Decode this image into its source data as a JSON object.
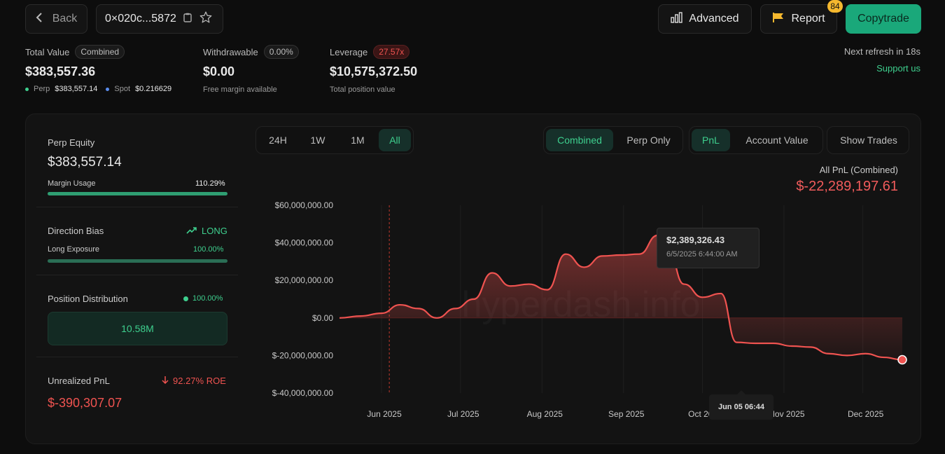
{
  "header": {
    "back_label": "Back",
    "address": "0×020c...5872",
    "advanced_label": "Advanced",
    "report_label": "Report",
    "report_badge": "84",
    "copytrade_label": "Copytrade"
  },
  "summary": {
    "total_value_label": "Total Value",
    "total_value_pill": "Combined",
    "total_value": "$383,557.36",
    "perp_label": "Perp",
    "perp_value": "$383,557.14",
    "spot_label": "Spot",
    "spot_value": "$0.216629",
    "withdrawable_label": "Withdrawable",
    "withdrawable_pill": "0.00%",
    "withdrawable_value": "$0.00",
    "withdrawable_sub": "Free margin available",
    "leverage_label": "Leverage",
    "leverage_pill": "27.57x",
    "leverage_value": "$10,575,372.50",
    "leverage_sub": "Total position value",
    "refresh_text": "Next refresh in 18s",
    "support_text": "Support us"
  },
  "left_panel": {
    "perp_equity_label": "Perp Equity",
    "perp_equity_value": "$383,557.14",
    "margin_usage_label": "Margin Usage",
    "margin_usage_value": "110.29%",
    "margin_usage_fraction": 1.0,
    "direction_bias_label": "Direction Bias",
    "direction_bias_value": "LONG",
    "long_exposure_label": "Long Exposure",
    "long_exposure_value": "100.00%",
    "long_exposure_fraction": 1.0,
    "position_dist_label": "Position Distribution",
    "position_dist_value": "100.00%",
    "position_dist_amount": "10.58M",
    "unrealized_label": "Unrealized PnL",
    "unrealized_roe": "92.27% ROE",
    "unrealized_value": "$-390,307.07"
  },
  "controls": {
    "time_ranges": [
      "24H",
      "1W",
      "1M",
      "All"
    ],
    "time_active": "All",
    "modes": [
      "Combined",
      "Perp Only"
    ],
    "mode_active": "Combined",
    "metrics": [
      "PnL",
      "Account Value"
    ],
    "metric_active": "PnL",
    "show_trades_label": "Show Trades"
  },
  "chart_data": {
    "type": "area",
    "title": "All PnL (Combined)",
    "total_value": "$-22,289,197.61",
    "watermark": "hyperdash.info",
    "y_ticks": [
      "$60,000,000.00",
      "$40,000,000.00",
      "$20,000,000.00",
      "$0.00",
      "$-20,000,000.00",
      "$-40,000,000.00"
    ],
    "x_ticks": [
      "Jun 2025",
      "Jul 2025",
      "Aug 2025",
      "Sep 2025",
      "Oct 2025",
      "Nov 2025",
      "Dec 2025"
    ],
    "ylim": [
      -40000000,
      60000000
    ],
    "tooltip_value": "$2,389,326.43",
    "tooltip_date": "6/5/2025 6:44:00 AM",
    "crosshair_label": "Jun 05 06:44",
    "line_color": "#ef5350",
    "series": [
      {
        "x": [
          "2025-05-16",
          "2025-05-24",
          "2025-06-01",
          "2025-06-08",
          "2025-06-15",
          "2025-06-22",
          "2025-06-29",
          "2025-07-06",
          "2025-07-13",
          "2025-07-20",
          "2025-07-27",
          "2025-08-03",
          "2025-08-10",
          "2025-08-17",
          "2025-08-24",
          "2025-08-31",
          "2025-09-07",
          "2025-09-14",
          "2025-09-18",
          "2025-09-24",
          "2025-10-01",
          "2025-10-08",
          "2025-10-14",
          "2025-10-21",
          "2025-10-28",
          "2025-11-04",
          "2025-11-11",
          "2025-11-18",
          "2025-11-25",
          "2025-12-02",
          "2025-12-09",
          "2025-12-16"
        ],
        "y": [
          0,
          1000000,
          2500000,
          7000000,
          5000000,
          0,
          5000000,
          10000000,
          24000000,
          17000000,
          18000000,
          15000000,
          34000000,
          27000000,
          33000000,
          33500000,
          34000000,
          44000000,
          36000000,
          18000000,
          11000000,
          13000000,
          -13000000,
          -13500000,
          -13500000,
          -15000000,
          -15500000,
          -19000000,
          -20000000,
          -19000000,
          -21000000,
          -22289197
        ]
      }
    ]
  }
}
